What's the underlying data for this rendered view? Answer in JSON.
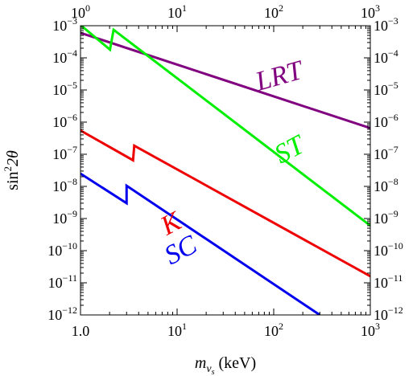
{
  "chart_data": {
    "type": "line",
    "xlabel": "m_{ν_s} (keV)",
    "xlabel_parts": {
      "main": "m",
      "sub": "ν",
      "subsub": "s",
      "unit": " (keV)"
    },
    "ylabel": "sin²2θ",
    "ylabel_parts": {
      "pre": "sin",
      "sup": "2",
      "post": "2θ"
    },
    "xscale": "log",
    "yscale": "log",
    "xlim": [
      1,
      1000
    ],
    "ylim": [
      1e-12,
      0.001
    ],
    "x_ticks": [
      1,
      10,
      100,
      1000
    ],
    "x_tick_labels": [
      {
        "base": "10",
        "exp": "0"
      },
      {
        "base": "10",
        "exp": "1"
      },
      {
        "base": "10",
        "exp": "2"
      },
      {
        "base": "10",
        "exp": "3"
      }
    ],
    "x_tick_labels_bottom": [
      {
        "base": "1.0",
        "exp": ""
      },
      {
        "base": "10",
        "exp": "1"
      },
      {
        "base": "10",
        "exp": "2"
      },
      {
        "base": "10",
        "exp": "3"
      }
    ],
    "y_ticks": [
      0.001,
      0.0001,
      1e-05,
      1e-06,
      1e-07,
      1e-08,
      1e-09,
      1e-10,
      1e-11,
      1e-12
    ],
    "y_tick_labels": [
      {
        "base": "10",
        "exp": "−3"
      },
      {
        "base": "10",
        "exp": "−4"
      },
      {
        "base": "10",
        "exp": "−5"
      },
      {
        "base": "10",
        "exp": "−6"
      },
      {
        "base": "10",
        "exp": "−7"
      },
      {
        "base": "10",
        "exp": "−8"
      },
      {
        "base": "10",
        "exp": "−9"
      },
      {
        "base": "10",
        "exp": "−10"
      },
      {
        "base": "10",
        "exp": "−11"
      },
      {
        "base": "10",
        "exp": "−12"
      }
    ],
    "grid": false,
    "series": [
      {
        "name": "LRT",
        "color": "#800080",
        "x": [
          1,
          1000
        ],
        "y": [
          0.0006,
          6.5e-07
        ],
        "label_at": {
          "x": 120,
          "y": 1.5e-05,
          "angle": -16
        }
      },
      {
        "name": "ST",
        "color": "#00ee00",
        "x": [
          1,
          2.02,
          2.2,
          1000
        ],
        "y": [
          0.00105,
          0.00018,
          0.00075,
          6e-10
        ],
        "label_at": {
          "x": 160,
          "y": 8e-08,
          "angle": -28
        }
      },
      {
        "name": "K",
        "color": "#ee0000",
        "x": [
          1,
          3.5,
          3.6,
          1000
        ],
        "y": [
          5.5e-07,
          6.5e-08,
          1.85e-07,
          1.6e-11
        ],
        "label_at": {
          "x": 9.5,
          "y": 4e-10,
          "angle": -28
        }
      },
      {
        "name": "SC",
        "color": "#0000ee",
        "x": [
          1,
          3.0,
          3.0,
          300
        ],
        "y": [
          2.5e-08,
          3e-09,
          1.05e-08,
          1e-12
        ],
        "label_at": {
          "x": 12,
          "y": 6e-11,
          "angle": -28
        }
      }
    ]
  }
}
